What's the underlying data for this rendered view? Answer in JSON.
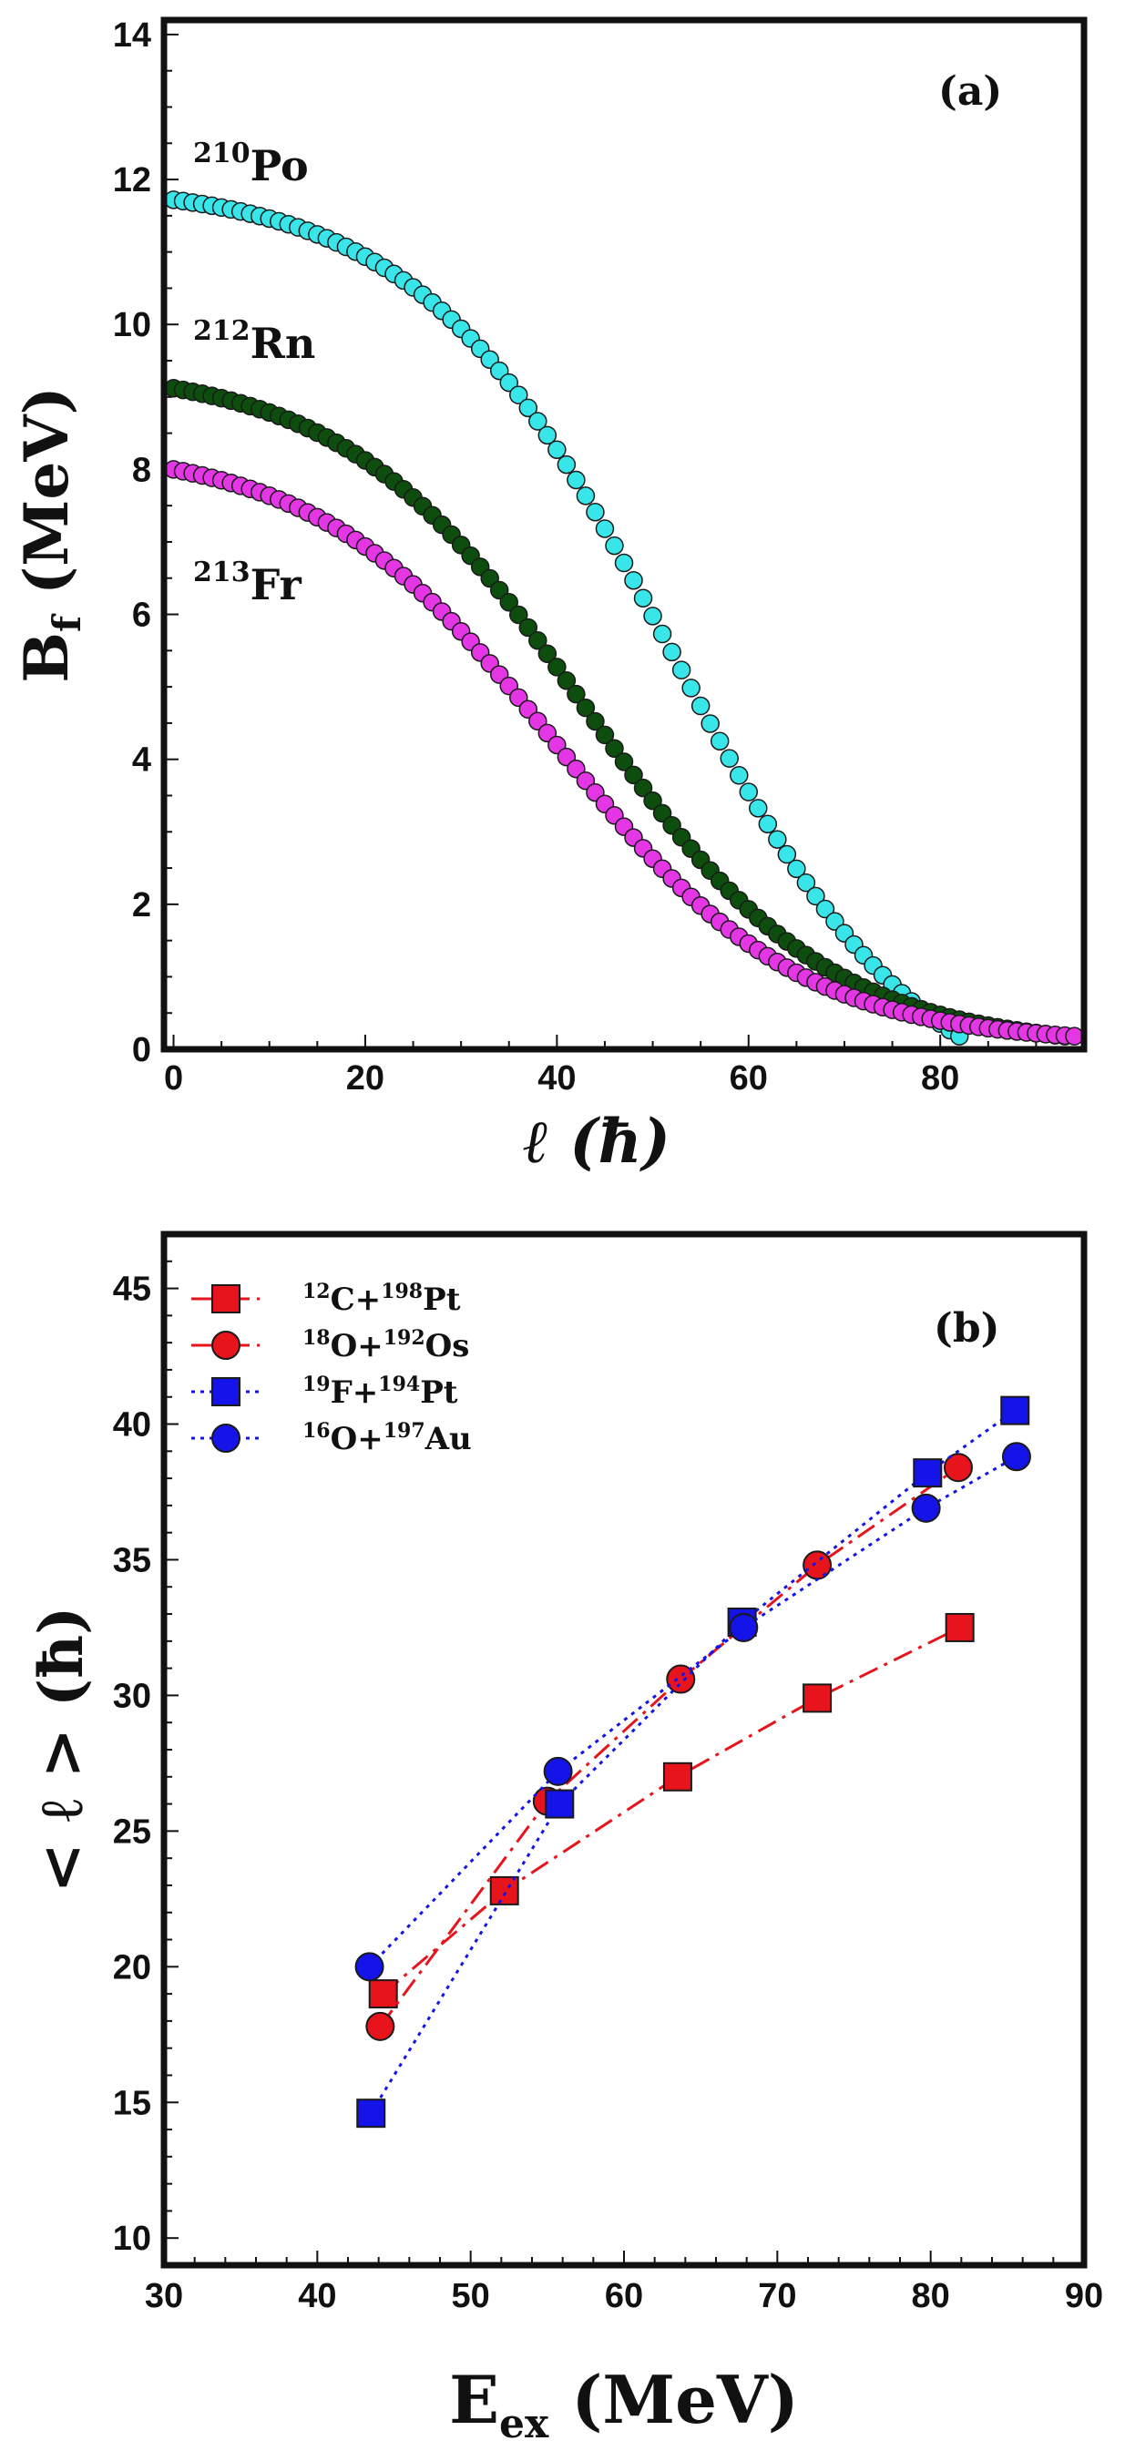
{
  "chart_data": [
    {
      "panel": "(a)",
      "type": "scatter",
      "xlabel": "ℓ (ħ)",
      "ylabel": "B",
      "ylabel_sub": "f",
      "ylabel_unit": "(MeV)",
      "xlim": [
        -1,
        95
      ],
      "ylim": [
        0,
        14.2
      ],
      "xticks": [
        0,
        20,
        40,
        60,
        80
      ],
      "yticks": [
        0,
        2,
        4,
        6,
        8,
        10,
        12,
        14
      ],
      "series": [
        {
          "name": "210Po",
          "mass": "210",
          "element": "Po",
          "color": "#38e6ea",
          "B0": 11.72,
          "l_half": 52,
          "width": 13,
          "l_max": 82
        },
        {
          "name": "212Rn",
          "mass": "212",
          "element": "Rn",
          "color": "#0d4d0d",
          "B0": 9.12,
          "l_half": 43,
          "width": 12.5,
          "l_max": 93
        },
        {
          "name": "213Fr",
          "mass": "213",
          "element": "Fr",
          "color": "#e436e4",
          "B0": 8.0,
          "l_half": 40,
          "width": 12.5,
          "l_max": 94
        }
      ]
    },
    {
      "panel": "(b)",
      "type": "line",
      "xlabel": "E",
      "xlabel_sub": "ex",
      "xlabel_unit": "(MeV)",
      "ylabel": "< ℓ > (ħ)",
      "xlim": [
        30,
        90
      ],
      "ylim": [
        9,
        47
      ],
      "xticks": [
        30,
        40,
        50,
        60,
        70,
        80,
        90
      ],
      "yticks": [
        10,
        15,
        20,
        25,
        30,
        35,
        40,
        45
      ],
      "legend_position": "top-left",
      "series": [
        {
          "m1": "12",
          "p": "C",
          "m2": "198",
          "t": "Pt",
          "marker": "square",
          "color": "#e8141c",
          "line": "dashdot",
          "x": [
            44.3,
            52.2,
            63.5,
            72.6,
            81.9
          ],
          "y": [
            19.0,
            22.8,
            27.0,
            29.9,
            32.5
          ]
        },
        {
          "m1": "18",
          "p": "O",
          "m2": "192",
          "t": "Os",
          "marker": "circle",
          "color": "#e8141c",
          "line": "dashdot",
          "x": [
            44.1,
            55.0,
            63.7,
            72.6,
            81.8
          ],
          "y": [
            17.8,
            26.1,
            30.6,
            34.8,
            38.4
          ]
        },
        {
          "m1": "19",
          "p": "F",
          "m2": "194",
          "t": "Pt",
          "marker": "square",
          "color": "#1414e8",
          "line": "dotted",
          "x": [
            43.5,
            55.8,
            67.7,
            79.8,
            85.5
          ],
          "y": [
            14.6,
            26.0,
            32.7,
            38.2,
            40.5
          ]
        },
        {
          "m1": "16",
          "p": "O",
          "m2": "197",
          "t": "Au",
          "marker": "circle",
          "color": "#1414e8",
          "line": "dotted",
          "x": [
            43.4,
            55.7,
            67.8,
            79.7,
            85.6
          ],
          "y": [
            20.0,
            27.2,
            32.5,
            36.9,
            38.8
          ]
        }
      ]
    }
  ]
}
